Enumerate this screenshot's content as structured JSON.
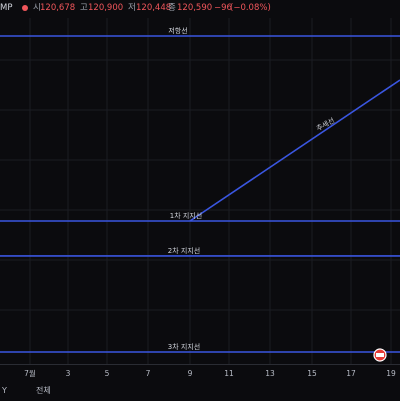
{
  "header": {
    "symbol_fragment": "MP",
    "open_label": "시",
    "open_value": "120,678",
    "high_label": "고",
    "high_value": "120,900",
    "low_label": "저",
    "low_value": "120,448",
    "close_label": "종",
    "close_value": "120,590",
    "change_value": "−96",
    "change_pct": "(−0.08%)",
    "dot_color": "#f0565b",
    "down_color": "#f0565b"
  },
  "bottom_bar": {
    "range_fragment": "Y",
    "all_label": "전체"
  },
  "annotations": {
    "resistance": "저항선",
    "trendline": "추세선",
    "support1": "1차 지지선",
    "support2": "2차 지지선",
    "support3": "3차 지지선"
  },
  "colors": {
    "background": "#0b0b0e",
    "up": "#26a69a",
    "down": "#ef5350",
    "level_line": "#3a56e0",
    "grid": "#1b1d23"
  },
  "chart_data": {
    "type": "candlestick",
    "title": "",
    "x_ticks": [
      "7월",
      "3",
      "5",
      "7",
      "9",
      "11",
      "13",
      "15",
      "17",
      "19"
    ],
    "y_range": [
      103000,
      124500
    ],
    "grid": true,
    "candles": [],
    "horizontal_levels": [
      {
        "name": "저항선",
        "value": 122900
      },
      {
        "name": "1차 지지선",
        "value": 110200
      },
      {
        "name": "2차 지지선",
        "value": 107800
      },
      {
        "name": "3차 지지선",
        "value": 100500
      }
    ],
    "trendline": {
      "name": "추세선",
      "from": {
        "x": "9",
        "y": 110200
      },
      "to": {
        "x": "19",
        "y": 120000
      }
    },
    "volume": []
  }
}
